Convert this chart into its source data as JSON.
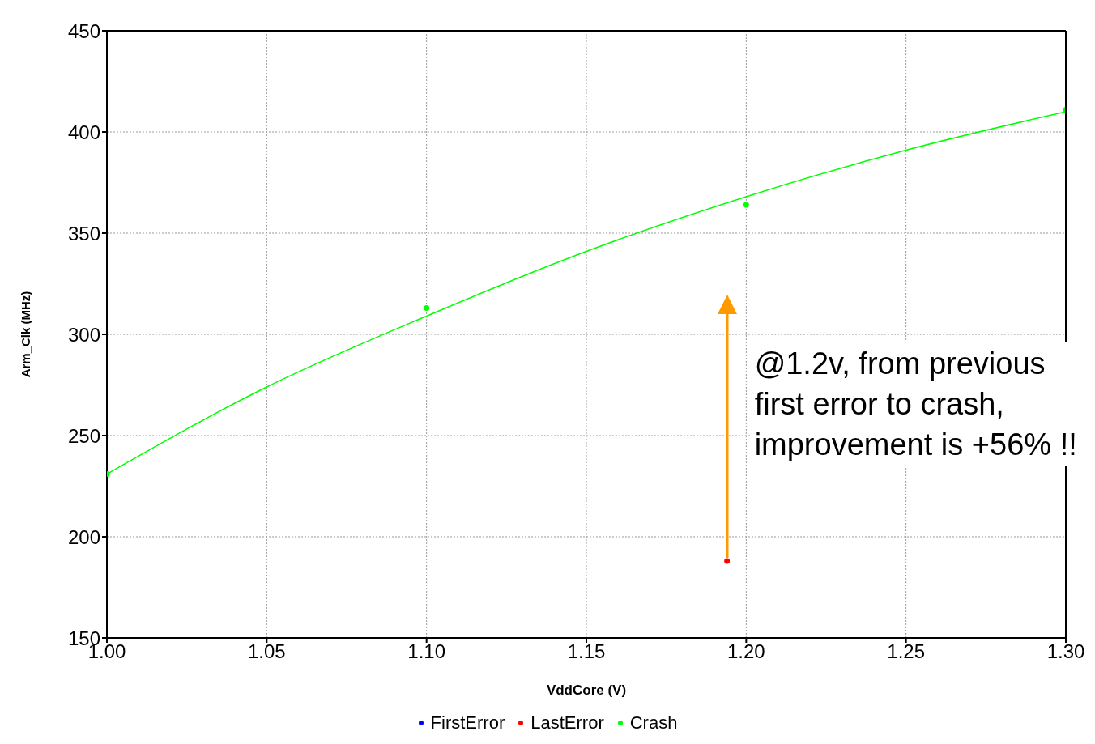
{
  "chart_data": {
    "type": "scatter",
    "xlabel": "VddCore (V)",
    "ylabel": "Arm_Clk (MHz)",
    "xlim": [
      1.0,
      1.3
    ],
    "xticks": [
      {
        "value": 1.0,
        "label": "1.00"
      },
      {
        "value": 1.05,
        "label": "1.05"
      },
      {
        "value": 1.1,
        "label": "1.10"
      },
      {
        "value": 1.15,
        "label": "1.15"
      },
      {
        "value": 1.2,
        "label": "1.20"
      },
      {
        "value": 1.25,
        "label": "1.25"
      },
      {
        "value": 1.3,
        "label": "1.30"
      }
    ],
    "ylim": [
      150,
      450
    ],
    "yticks": [
      150,
      200,
      250,
      300,
      350,
      400,
      450
    ],
    "grid": true,
    "legend": "bottom",
    "marker": "circle",
    "series": [
      {
        "name": "FirstError",
        "color": "#0000ff"
      },
      {
        "name": "LastError",
        "color": "#ff0000",
        "x": [
          1.194
        ],
        "values": [
          188
        ]
      },
      {
        "name": "Crash",
        "color": "#00ff00",
        "x": [
          1.0,
          1.1,
          1.2,
          1.3
        ],
        "values": [
          231,
          313,
          364,
          411
        ]
      },
      {
        "type": "line",
        "marker": "none",
        "color": "#00ff00",
        "x": [
          1.0,
          1.05,
          1.1,
          1.15,
          1.2,
          1.25,
          1.3
        ],
        "values": [
          231,
          274,
          309,
          341,
          368,
          391,
          410
        ]
      }
    ],
    "annotations": [
      "@1.2v, from previous first error to crash, improvement is +56% !!"
    ]
  }
}
